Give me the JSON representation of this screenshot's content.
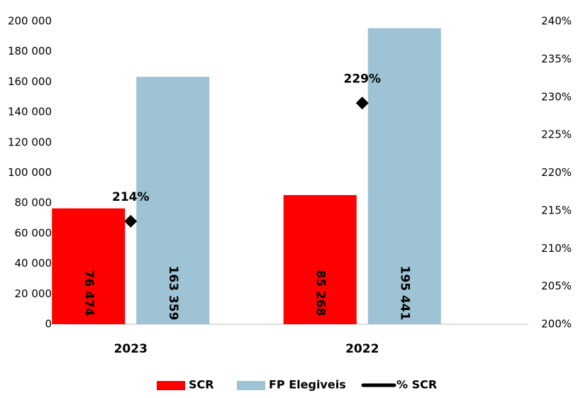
{
  "chart_data": {
    "type": "bar",
    "categories": [
      "2023",
      "2022"
    ],
    "series": [
      {
        "name": "SCR",
        "color": "#ff0000",
        "values": [
          76474,
          85268
        ],
        "value_labels": [
          "76 474",
          "85 268"
        ]
      },
      {
        "name": "FP Elegiveis",
        "color": "#9dc3d4",
        "values": [
          163359,
          195441
        ],
        "value_labels": [
          "163 359",
          "195 441"
        ]
      },
      {
        "name": "% SCR",
        "color": "#000000",
        "type": "line",
        "marker": "diamond",
        "axis": "y2",
        "values": [
          213.6,
          229.2
        ],
        "value_labels": [
          "214%",
          "229%"
        ]
      }
    ],
    "ylim": [
      0,
      200000
    ],
    "yticks": [
      0,
      {
        "value": 20000,
        "label": "20 000"
      },
      {
        "value": 40000,
        "label": "40 000"
      },
      {
        "value": 60000,
        "label": "60 000"
      },
      {
        "value": 80000,
        "label": "80 000"
      },
      {
        "value": 100000,
        "label": "100 000"
      },
      {
        "value": 120000,
        "label": "120 000"
      },
      {
        "value": 140000,
        "label": "140 000"
      },
      {
        "value": 160000,
        "label": "160 000"
      },
      {
        "value": 180000,
        "label": "180 000"
      },
      {
        "value": 200000,
        "label": "200 000"
      }
    ],
    "y2lim": [
      200,
      240
    ],
    "y2ticks": [
      {
        "value": 200,
        "label": "200%"
      },
      {
        "value": 205,
        "label": "205%"
      },
      {
        "value": 210,
        "label": "210%"
      },
      {
        "value": 215,
        "label": "215%"
      },
      {
        "value": 220,
        "label": "220%"
      },
      {
        "value": 225,
        "label": "225%"
      },
      {
        "value": 230,
        "label": "230%"
      },
      {
        "value": 235,
        "label": "235%"
      },
      {
        "value": 240,
        "label": "240%"
      }
    ],
    "legend": "bottom"
  }
}
